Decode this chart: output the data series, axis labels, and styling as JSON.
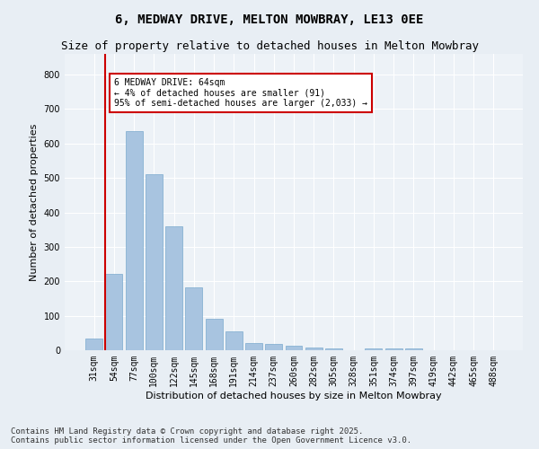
{
  "title1": "6, MEDWAY DRIVE, MELTON MOWBRAY, LE13 0EE",
  "title2": "Size of property relative to detached houses in Melton Mowbray",
  "xlabel": "Distribution of detached houses by size in Melton Mowbray",
  "ylabel": "Number of detached properties",
  "categories": [
    "31sqm",
    "54sqm",
    "77sqm",
    "100sqm",
    "122sqm",
    "145sqm",
    "168sqm",
    "191sqm",
    "214sqm",
    "237sqm",
    "260sqm",
    "282sqm",
    "305sqm",
    "328sqm",
    "351sqm",
    "374sqm",
    "397sqm",
    "419sqm",
    "442sqm",
    "465sqm",
    "488sqm"
  ],
  "values": [
    35,
    222,
    635,
    510,
    360,
    182,
    90,
    55,
    22,
    18,
    12,
    7,
    5,
    0,
    5,
    4,
    4,
    0,
    0,
    0,
    0
  ],
  "bar_color": "#a8c4e0",
  "bar_edge_color": "#7aaace",
  "vline_color": "#cc0000",
  "annotation_text": "6 MEDWAY DRIVE: 64sqm\n← 4% of detached houses are smaller (91)\n95% of semi-detached houses are larger (2,033) →",
  "annotation_box_color": "#ffffff",
  "annotation_box_edge": "#cc0000",
  "ylim": [
    0,
    860
  ],
  "yticks": [
    0,
    100,
    200,
    300,
    400,
    500,
    600,
    700,
    800
  ],
  "bg_color": "#e8eef4",
  "plot_bg_color": "#edf2f7",
  "grid_color": "#ffffff",
  "footer": "Contains HM Land Registry data © Crown copyright and database right 2025.\nContains public sector information licensed under the Open Government Licence v3.0.",
  "title_fontsize": 10,
  "subtitle_fontsize": 9,
  "label_fontsize": 8,
  "tick_fontsize": 7,
  "footer_fontsize": 6.5
}
